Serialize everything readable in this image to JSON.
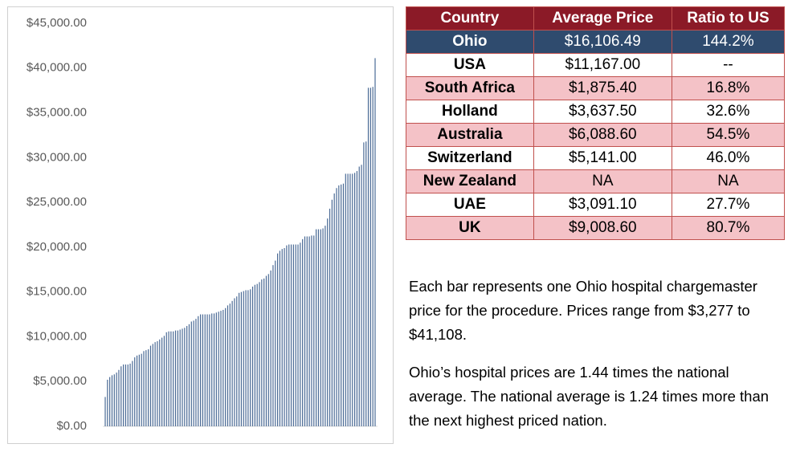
{
  "chart_data": {
    "type": "bar",
    "color": "#4a6a95",
    "values": [
      3277,
      5200,
      5500,
      5700,
      5800,
      6000,
      6300,
      6700,
      6900,
      6900,
      6900,
      7000,
      7300,
      7700,
      7900,
      8000,
      8100,
      8400,
      8500,
      8600,
      9000,
      9200,
      9400,
      9500,
      9700,
      9900,
      10100,
      10500,
      10600,
      10600,
      10600,
      10700,
      10700,
      10800,
      10900,
      11000,
      11200,
      11400,
      11700,
      11800,
      12000,
      12300,
      12500,
      12500,
      12500,
      12500,
      12500,
      12600,
      12600,
      12700,
      12800,
      12900,
      13000,
      13200,
      13500,
      13700,
      14000,
      14300,
      14500,
      14900,
      15000,
      15100,
      15200,
      15200,
      15300,
      15600,
      15800,
      15900,
      16100,
      16400,
      16500,
      16800,
      17000,
      17400,
      18000,
      18500,
      19300,
      19600,
      19800,
      19900,
      20200,
      20300,
      20300,
      20300,
      20300,
      20300,
      20500,
      20900,
      21200,
      21200,
      21200,
      21300,
      21300,
      22000,
      22000,
      22000,
      22100,
      22400,
      23200,
      24300,
      25300,
      26000,
      26600,
      26900,
      27000,
      27100,
      28200,
      28200,
      28200,
      28200,
      28300,
      28500,
      29000,
      29200,
      31700,
      31800,
      37800,
      37800,
      37900,
      41108
    ],
    "ylim": [
      0,
      45000
    ],
    "yticks": [
      {
        "value": 0,
        "label": "$0.00"
      },
      {
        "value": 5000,
        "label": "$5,000.00"
      },
      {
        "value": 10000,
        "label": "$10,000.00"
      },
      {
        "value": 15000,
        "label": "$15,000.00"
      },
      {
        "value": 20000,
        "label": "$20,000.00"
      },
      {
        "value": 25000,
        "label": "$25,000.00"
      },
      {
        "value": 30000,
        "label": "$30,000.00"
      },
      {
        "value": 35000,
        "label": "$35,000.00"
      },
      {
        "value": 40000,
        "label": "$40,000.00"
      },
      {
        "value": 45000,
        "label": "$45,000.00"
      }
    ],
    "grid": false
  },
  "table": {
    "header": [
      "Country",
      "Average Price",
      "Ratio to US"
    ],
    "rows": [
      [
        "Ohio",
        "$16,106.49",
        "144.2%"
      ],
      [
        "USA",
        "$11,167.00",
        "--"
      ],
      [
        "South Africa",
        "$1,875.40",
        "16.8%"
      ],
      [
        "Holland",
        "$3,637.50",
        "32.6%"
      ],
      [
        "Australia",
        "$6,088.60",
        "54.5%"
      ],
      [
        "Switzerland",
        "$5,141.00",
        "46.0%"
      ],
      [
        "New Zealand",
        "NA",
        "NA"
      ],
      [
        "UAE",
        "$3,091.10",
        "27.7%"
      ],
      [
        "UK",
        "$9,008.60",
        "80.7%"
      ]
    ]
  },
  "notes": [
    "Each bar represents one Ohio hospital chargemaster price for the procedure. Prices range from $3,277 to $41,108.",
    "Ohio’s hospital prices are 1.44 times the national average. The national average is 1.24 times more than the next highest priced nation."
  ]
}
